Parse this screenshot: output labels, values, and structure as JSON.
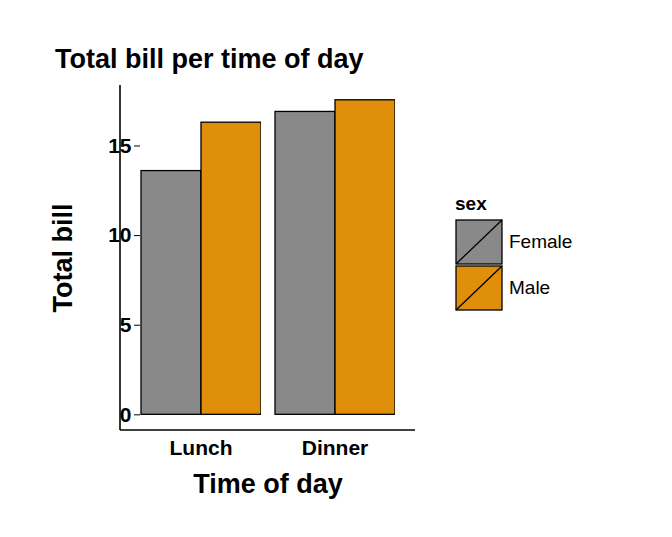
{
  "chart_data": {
    "type": "bar",
    "title": "Total bill per time of day",
    "x_label": "Time of day",
    "y_label": "Total bill",
    "categories": [
      "Lunch",
      "Dinner"
    ],
    "series": [
      {
        "name": "Female",
        "color": "#898989",
        "values": [
          13.6,
          16.9
        ]
      },
      {
        "name": "Male",
        "color": "#E08F0A",
        "values": [
          16.3,
          17.55
        ]
      }
    ],
    "ylim": [
      -0.875,
      18.375
    ],
    "yticks": [
      0,
      5,
      10,
      15
    ],
    "grid": false,
    "legend": "right",
    "legend_title": "sex"
  }
}
